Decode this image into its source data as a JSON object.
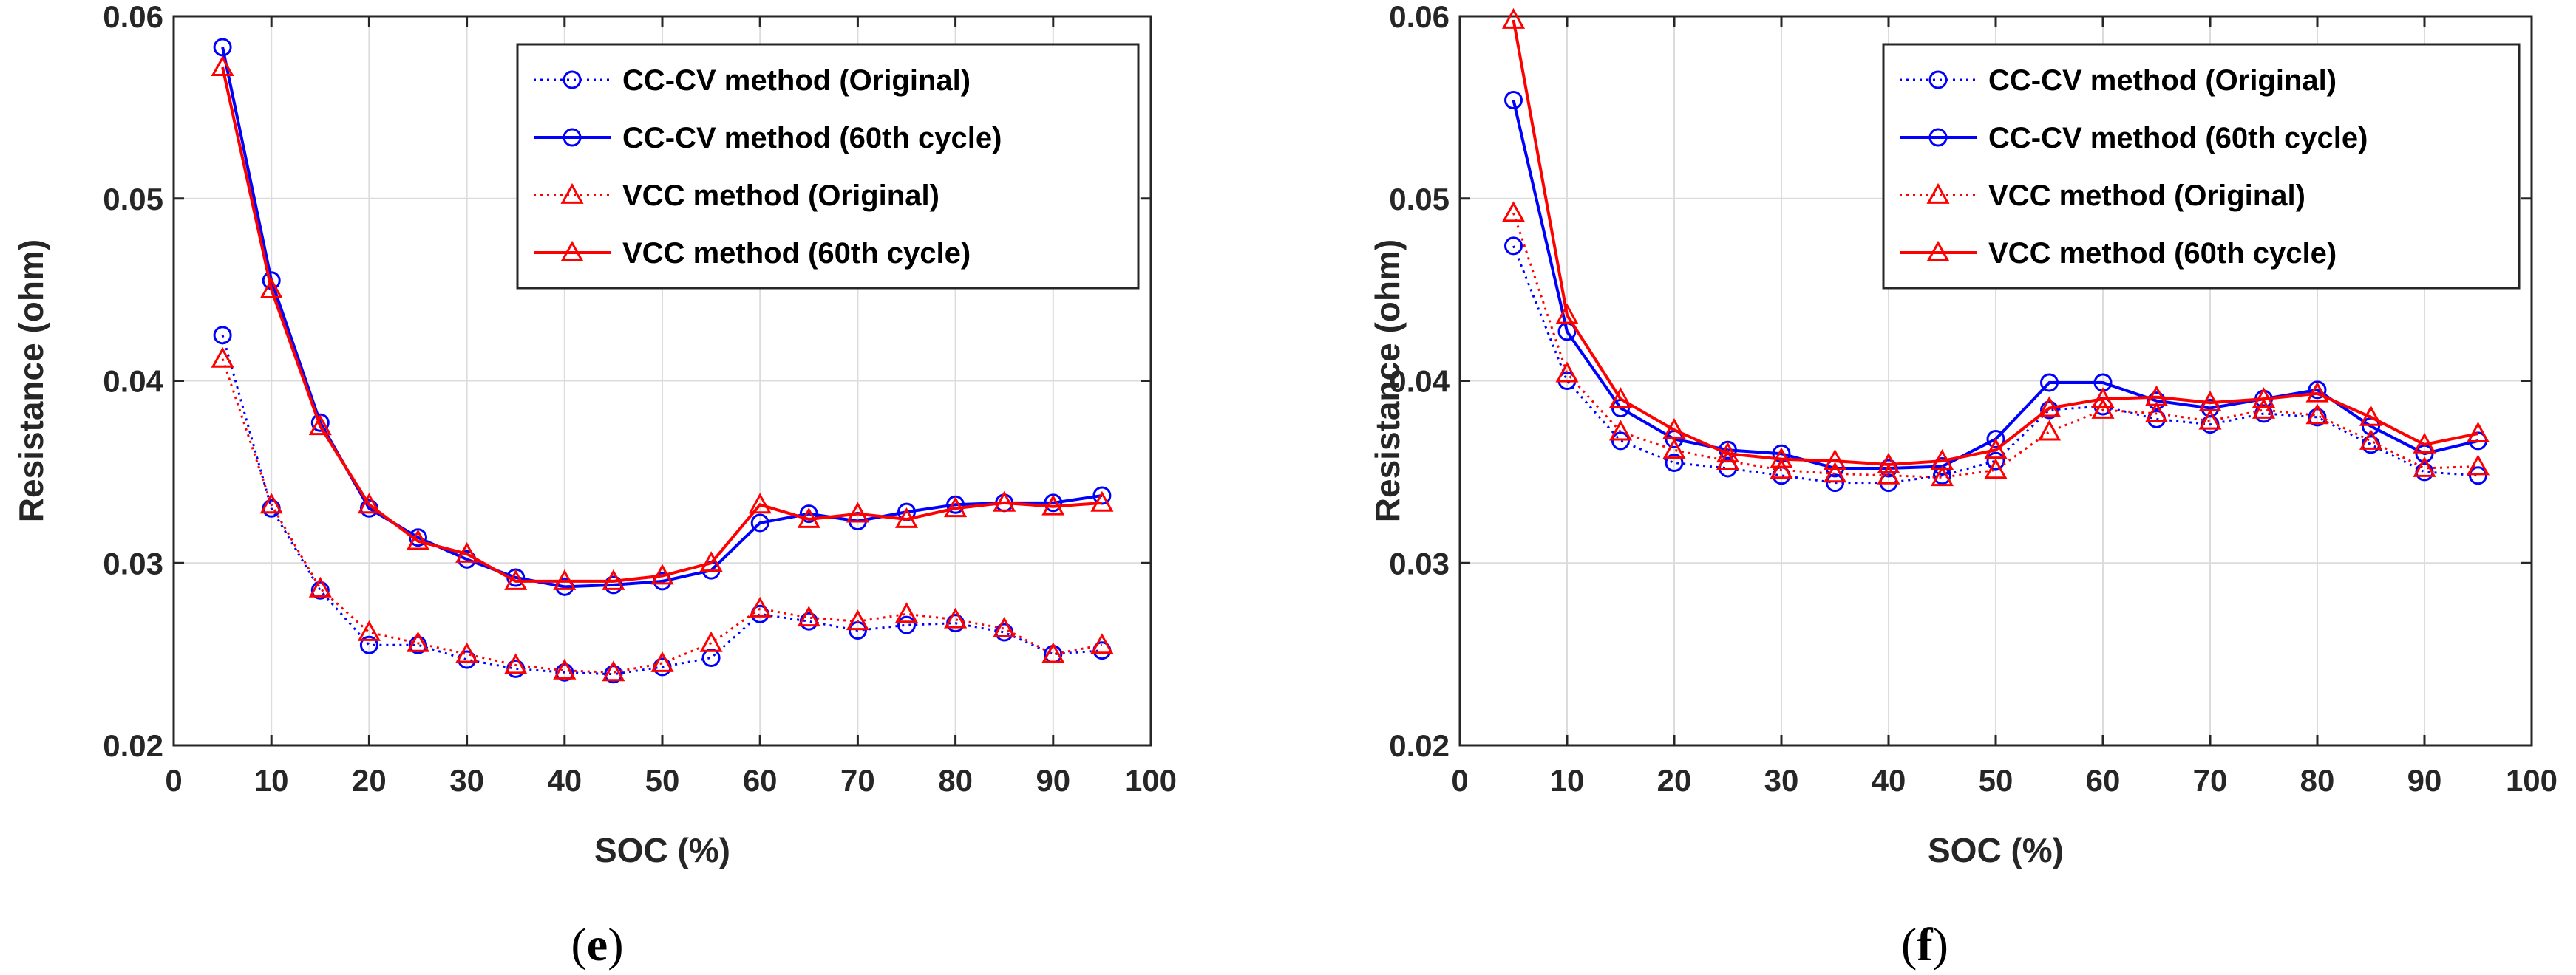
{
  "chart_data": [
    {
      "type": "line",
      "panel_label": "e",
      "title": "",
      "xlabel": "SOC (%)",
      "ylabel": "Resistance (ohm)",
      "xlim": [
        0,
        100
      ],
      "ylim": [
        0.02,
        0.06
      ],
      "xticks": [
        0,
        10,
        20,
        30,
        40,
        50,
        60,
        70,
        80,
        90,
        100
      ],
      "yticks": [
        0.02,
        0.03,
        0.04,
        0.05,
        0.06
      ],
      "ytick_labels": [
        "0.02",
        "0.03",
        "0.04",
        "0.05",
        "0.06"
      ],
      "grid": true,
      "legend_position": "top-right",
      "x": [
        5,
        10,
        15,
        20,
        25,
        30,
        35,
        40,
        45,
        50,
        55,
        60,
        65,
        70,
        75,
        80,
        85,
        90,
        95
      ],
      "series": [
        {
          "name": "CC-CV method (Original)",
          "color": "#0000ff",
          "line": "dotted",
          "marker": "circle",
          "values": [
            0.0425,
            0.033,
            0.0285,
            0.0255,
            0.0255,
            0.0247,
            0.0242,
            0.024,
            0.0239,
            0.0243,
            0.0248,
            0.0272,
            0.0268,
            0.0263,
            0.0266,
            0.0267,
            0.0262,
            0.025,
            0.0252
          ]
        },
        {
          "name": "CC-CV method (60th cycle)",
          "color": "#0000ff",
          "line": "solid",
          "marker": "circle",
          "values": [
            0.0583,
            0.0455,
            0.0377,
            0.033,
            0.0314,
            0.0302,
            0.0292,
            0.0287,
            0.0288,
            0.029,
            0.0296,
            0.0322,
            0.0327,
            0.0323,
            0.0328,
            0.0332,
            0.0333,
            0.0333,
            0.0337
          ]
        },
        {
          "name": "VCC method (Original)",
          "color": "#ff0000",
          "line": "dotted",
          "marker": "triangle",
          "values": [
            0.0412,
            0.0332,
            0.0286,
            0.0262,
            0.0256,
            0.025,
            0.0244,
            0.0241,
            0.024,
            0.0245,
            0.0256,
            0.0275,
            0.027,
            0.0268,
            0.0272,
            0.0269,
            0.0264,
            0.025,
            0.0255
          ]
        },
        {
          "name": "VCC method (60th cycle)",
          "color": "#ff0000",
          "line": "solid",
          "marker": "triangle",
          "values": [
            0.0572,
            0.045,
            0.0375,
            0.0332,
            0.0312,
            0.0305,
            0.029,
            0.029,
            0.029,
            0.0293,
            0.03,
            0.0332,
            0.0324,
            0.0327,
            0.0324,
            0.033,
            0.0333,
            0.0331,
            0.0333
          ]
        }
      ]
    },
    {
      "type": "line",
      "panel_label": "f",
      "title": "",
      "xlabel": "SOC (%)",
      "ylabel": "Resistance (ohm)",
      "xlim": [
        0,
        100
      ],
      "ylim": [
        0.02,
        0.06
      ],
      "xticks": [
        0,
        10,
        20,
        30,
        40,
        50,
        60,
        70,
        80,
        90,
        100
      ],
      "yticks": [
        0.02,
        0.03,
        0.04,
        0.05,
        0.06
      ],
      "ytick_labels": [
        "0.02",
        "0.03",
        "0.04",
        "0.05",
        "0.06"
      ],
      "grid": true,
      "legend_position": "top-right",
      "x": [
        5,
        10,
        15,
        20,
        25,
        30,
        35,
        40,
        45,
        50,
        55,
        60,
        65,
        70,
        75,
        80,
        85,
        90,
        95
      ],
      "series": [
        {
          "name": "CC-CV method (Original)",
          "color": "#0000ff",
          "line": "dotted",
          "marker": "circle",
          "values": [
            0.0474,
            0.04,
            0.0367,
            0.0355,
            0.0352,
            0.0348,
            0.0344,
            0.0344,
            0.0348,
            0.0356,
            0.0384,
            0.0386,
            0.0379,
            0.0376,
            0.0382,
            0.038,
            0.0365,
            0.035,
            0.0348
          ]
        },
        {
          "name": "CC-CV method (60th cycle)",
          "color": "#0000ff",
          "line": "solid",
          "marker": "circle",
          "values": [
            0.0554,
            0.0427,
            0.0385,
            0.0368,
            0.0362,
            0.036,
            0.0352,
            0.0352,
            0.0353,
            0.0368,
            0.0399,
            0.0399,
            0.0389,
            0.0385,
            0.039,
            0.0395,
            0.0375,
            0.036,
            0.0367
          ]
        },
        {
          "name": "VCC method (Original)",
          "color": "#ff0000",
          "line": "dotted",
          "marker": "triangle",
          "values": [
            0.0492,
            0.0404,
            0.0372,
            0.0362,
            0.0356,
            0.0351,
            0.0349,
            0.0348,
            0.0347,
            0.0351,
            0.0372,
            0.0384,
            0.0382,
            0.0378,
            0.0384,
            0.0381,
            0.0367,
            0.0352,
            0.0353
          ]
        },
        {
          "name": "VCC method (60th cycle)",
          "color": "#ff0000",
          "line": "solid",
          "marker": "triangle",
          "values": [
            0.0598,
            0.0436,
            0.039,
            0.0373,
            0.036,
            0.0357,
            0.0356,
            0.0354,
            0.0356,
            0.0362,
            0.0385,
            0.039,
            0.0391,
            0.0388,
            0.039,
            0.0393,
            0.038,
            0.0365,
            0.0371
          ]
        }
      ]
    }
  ]
}
